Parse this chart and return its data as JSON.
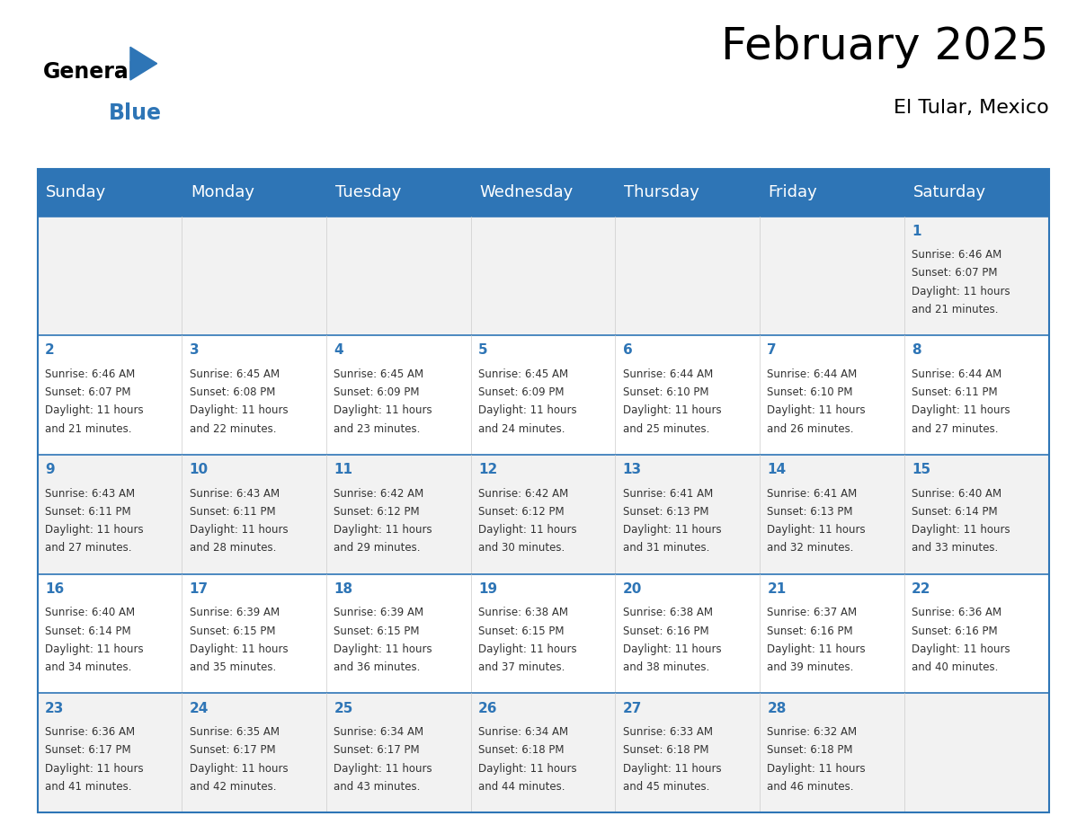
{
  "title": "February 2025",
  "subtitle": "El Tular, Mexico",
  "header_color": "#2e75b6",
  "header_text_color": "#ffffff",
  "cell_bg_odd": "#f2f2f2",
  "cell_bg_even": "#ffffff",
  "border_color": "#2e75b6",
  "day_headers": [
    "Sunday",
    "Monday",
    "Tuesday",
    "Wednesday",
    "Thursday",
    "Friday",
    "Saturday"
  ],
  "title_fontsize": 36,
  "subtitle_fontsize": 16,
  "header_fontsize": 13,
  "day_num_fontsize": 11,
  "cell_fontsize": 8.5,
  "calendar": [
    [
      null,
      null,
      null,
      null,
      null,
      null,
      {
        "day": 1,
        "sunrise": "6:46 AM",
        "sunset": "6:07 PM",
        "daylight_suffix": "21 minutes."
      }
    ],
    [
      {
        "day": 2,
        "sunrise": "6:46 AM",
        "sunset": "6:07 PM",
        "daylight_suffix": "21 minutes."
      },
      {
        "day": 3,
        "sunrise": "6:45 AM",
        "sunset": "6:08 PM",
        "daylight_suffix": "22 minutes."
      },
      {
        "day": 4,
        "sunrise": "6:45 AM",
        "sunset": "6:09 PM",
        "daylight_suffix": "23 minutes."
      },
      {
        "day": 5,
        "sunrise": "6:45 AM",
        "sunset": "6:09 PM",
        "daylight_suffix": "24 minutes."
      },
      {
        "day": 6,
        "sunrise": "6:44 AM",
        "sunset": "6:10 PM",
        "daylight_suffix": "25 minutes."
      },
      {
        "day": 7,
        "sunrise": "6:44 AM",
        "sunset": "6:10 PM",
        "daylight_suffix": "26 minutes."
      },
      {
        "day": 8,
        "sunrise": "6:44 AM",
        "sunset": "6:11 PM",
        "daylight_suffix": "27 minutes."
      }
    ],
    [
      {
        "day": 9,
        "sunrise": "6:43 AM",
        "sunset": "6:11 PM",
        "daylight_suffix": "27 minutes."
      },
      {
        "day": 10,
        "sunrise": "6:43 AM",
        "sunset": "6:11 PM",
        "daylight_suffix": "28 minutes."
      },
      {
        "day": 11,
        "sunrise": "6:42 AM",
        "sunset": "6:12 PM",
        "daylight_suffix": "29 minutes."
      },
      {
        "day": 12,
        "sunrise": "6:42 AM",
        "sunset": "6:12 PM",
        "daylight_suffix": "30 minutes."
      },
      {
        "day": 13,
        "sunrise": "6:41 AM",
        "sunset": "6:13 PM",
        "daylight_suffix": "31 minutes."
      },
      {
        "day": 14,
        "sunrise": "6:41 AM",
        "sunset": "6:13 PM",
        "daylight_suffix": "32 minutes."
      },
      {
        "day": 15,
        "sunrise": "6:40 AM",
        "sunset": "6:14 PM",
        "daylight_suffix": "33 minutes."
      }
    ],
    [
      {
        "day": 16,
        "sunrise": "6:40 AM",
        "sunset": "6:14 PM",
        "daylight_suffix": "34 minutes."
      },
      {
        "day": 17,
        "sunrise": "6:39 AM",
        "sunset": "6:15 PM",
        "daylight_suffix": "35 minutes."
      },
      {
        "day": 18,
        "sunrise": "6:39 AM",
        "sunset": "6:15 PM",
        "daylight_suffix": "36 minutes."
      },
      {
        "day": 19,
        "sunrise": "6:38 AM",
        "sunset": "6:15 PM",
        "daylight_suffix": "37 minutes."
      },
      {
        "day": 20,
        "sunrise": "6:38 AM",
        "sunset": "6:16 PM",
        "daylight_suffix": "38 minutes."
      },
      {
        "day": 21,
        "sunrise": "6:37 AM",
        "sunset": "6:16 PM",
        "daylight_suffix": "39 minutes."
      },
      {
        "day": 22,
        "sunrise": "6:36 AM",
        "sunset": "6:16 PM",
        "daylight_suffix": "40 minutes."
      }
    ],
    [
      {
        "day": 23,
        "sunrise": "6:36 AM",
        "sunset": "6:17 PM",
        "daylight_suffix": "41 minutes."
      },
      {
        "day": 24,
        "sunrise": "6:35 AM",
        "sunset": "6:17 PM",
        "daylight_suffix": "42 minutes."
      },
      {
        "day": 25,
        "sunrise": "6:34 AM",
        "sunset": "6:17 PM",
        "daylight_suffix": "43 minutes."
      },
      {
        "day": 26,
        "sunrise": "6:34 AM",
        "sunset": "6:18 PM",
        "daylight_suffix": "44 minutes."
      },
      {
        "day": 27,
        "sunrise": "6:33 AM",
        "sunset": "6:18 PM",
        "daylight_suffix": "45 minutes."
      },
      {
        "day": 28,
        "sunrise": "6:32 AM",
        "sunset": "6:18 PM",
        "daylight_suffix": "46 minutes."
      },
      null
    ]
  ]
}
